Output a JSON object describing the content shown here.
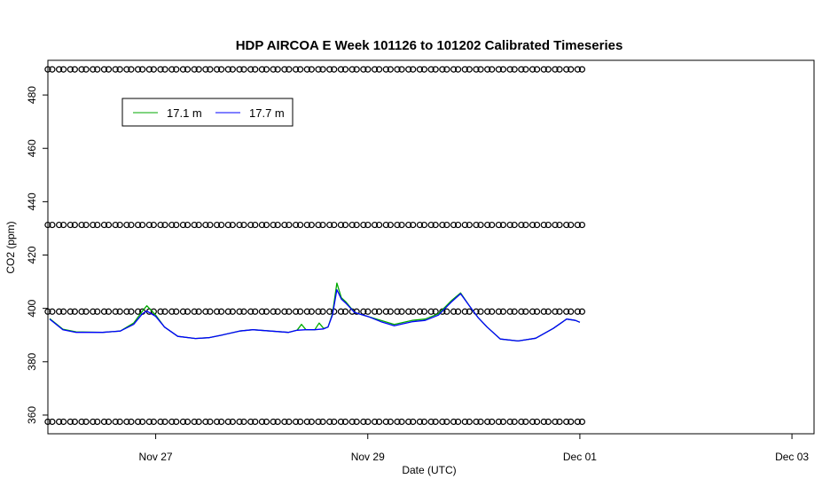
{
  "chart_data": {
    "type": "line",
    "title": "HDP AIRCOA E  Week 101126 to 101202  Calibrated Timeseries",
    "xlabel": "Date (UTC)",
    "ylabel": "CO2 (ppm)",
    "xlim": [
      "2010-11-25T23:36",
      "2010-12-03T05:00"
    ],
    "ylim": [
      353,
      493
    ],
    "x_ticks": [
      {
        "t": "2010-11-27T00:00",
        "label": "Nov 27"
      },
      {
        "t": "2010-11-29T00:00",
        "label": "Nov 29"
      },
      {
        "t": "2010-12-01T00:00",
        "label": "Dec 01"
      },
      {
        "t": "2010-12-03T00:00",
        "label": "Dec 03"
      }
    ],
    "y_ticks": [
      360,
      380,
      400,
      420,
      440,
      460,
      480
    ],
    "legend": {
      "position": "top-left",
      "entries": [
        {
          "label": "17.1 m",
          "color": "#00aa00"
        },
        {
          "label": "17.7 m",
          "color": "#0000ff"
        }
      ]
    },
    "series": [
      {
        "name": "17.1 m",
        "color": "#00aa00",
        "points": [
          [
            "2010-11-26T00:00",
            396.2
          ],
          [
            "2010-11-26T03:00",
            392.2
          ],
          [
            "2010-11-26T06:00",
            391.2
          ],
          [
            "2010-11-26T12:00",
            391.0
          ],
          [
            "2010-11-26T16:00",
            391.5
          ],
          [
            "2010-11-26T19:00",
            394.5
          ],
          [
            "2010-11-26T21:00",
            399.0
          ],
          [
            "2010-11-26T22:00",
            401.0
          ],
          [
            "2010-11-27T00:00",
            397.5
          ],
          [
            "2010-11-27T02:00",
            393.0
          ],
          [
            "2010-11-27T05:00",
            389.5
          ],
          [
            "2010-11-27T09:00",
            388.7
          ],
          [
            "2010-11-27T12:00",
            389.0
          ],
          [
            "2010-11-27T15:00",
            390.0
          ],
          [
            "2010-11-27T19:00",
            391.5
          ],
          [
            "2010-11-27T22:00",
            392.0
          ],
          [
            "2010-11-28T02:00",
            391.5
          ],
          [
            "2010-11-28T06:00",
            391.0
          ],
          [
            "2010-11-28T08:00",
            391.8
          ],
          [
            "2010-11-28T09:00",
            394.0
          ],
          [
            "2010-11-28T10:00",
            392.0
          ],
          [
            "2010-11-28T12:00",
            392.0
          ],
          [
            "2010-11-28T13:00",
            394.5
          ],
          [
            "2010-11-28T14:00",
            392.5
          ],
          [
            "2010-11-28T15:00",
            393.0
          ],
          [
            "2010-11-28T16:00",
            398.0
          ],
          [
            "2010-11-28T17:00",
            409.5
          ],
          [
            "2010-11-28T18:00",
            404.0
          ],
          [
            "2010-11-28T19:00",
            402.5
          ],
          [
            "2010-11-28T21:00",
            398.5
          ],
          [
            "2010-11-29T00:00",
            397.0
          ],
          [
            "2010-11-29T03:00",
            395.5
          ],
          [
            "2010-11-29T06:00",
            394.0
          ],
          [
            "2010-11-29T10:00",
            395.5
          ],
          [
            "2010-11-29T13:00",
            396.0
          ],
          [
            "2010-11-29T16:00",
            398.0
          ],
          [
            "2010-11-29T19:00",
            403.0
          ],
          [
            "2010-11-29T21:00",
            405.8
          ],
          [
            "2010-11-29T23:00",
            401.0
          ],
          [
            "2010-11-30T01:00",
            396.5
          ],
          [
            "2010-11-30T03:00",
            393.0
          ],
          [
            "2010-11-30T06:00",
            388.5
          ],
          [
            "2010-11-30T10:00",
            387.8
          ],
          [
            "2010-11-30T14:00",
            388.8
          ],
          [
            "2010-11-30T18:00",
            392.5
          ],
          [
            "2010-11-30T21:00",
            396.0
          ],
          [
            "2010-11-30T23:00",
            395.5
          ],
          [
            "2010-12-01T00:00",
            394.8
          ]
        ]
      },
      {
        "name": "17.7 m",
        "color": "#0000ff",
        "points": [
          [
            "2010-11-26T00:00",
            396.0
          ],
          [
            "2010-11-26T03:00",
            392.0
          ],
          [
            "2010-11-26T06:00",
            391.0
          ],
          [
            "2010-11-26T12:00",
            391.0
          ],
          [
            "2010-11-26T16:00",
            391.5
          ],
          [
            "2010-11-26T19:00",
            394.0
          ],
          [
            "2010-11-26T21:00",
            398.0
          ],
          [
            "2010-11-26T22:00",
            399.0
          ],
          [
            "2010-11-27T00:00",
            397.0
          ],
          [
            "2010-11-27T02:00",
            393.0
          ],
          [
            "2010-11-27T05:00",
            389.5
          ],
          [
            "2010-11-27T09:00",
            388.7
          ],
          [
            "2010-11-27T12:00",
            389.0
          ],
          [
            "2010-11-27T15:00",
            390.0
          ],
          [
            "2010-11-27T19:00",
            391.5
          ],
          [
            "2010-11-27T22:00",
            392.0
          ],
          [
            "2010-11-28T02:00",
            391.5
          ],
          [
            "2010-11-28T06:00",
            391.0
          ],
          [
            "2010-11-28T08:00",
            391.8
          ],
          [
            "2010-11-28T10:00",
            392.0
          ],
          [
            "2010-11-28T12:00",
            392.0
          ],
          [
            "2010-11-28T14:00",
            392.3
          ],
          [
            "2010-11-28T15:00",
            393.0
          ],
          [
            "2010-11-28T16:00",
            397.5
          ],
          [
            "2010-11-28T17:00",
            407.0
          ],
          [
            "2010-11-28T18:00",
            403.5
          ],
          [
            "2010-11-28T19:00",
            402.0
          ],
          [
            "2010-11-28T21:00",
            398.5
          ],
          [
            "2010-11-29T00:00",
            397.0
          ],
          [
            "2010-11-29T03:00",
            395.0
          ],
          [
            "2010-11-29T06:00",
            393.5
          ],
          [
            "2010-11-29T10:00",
            395.0
          ],
          [
            "2010-11-29T13:00",
            395.5
          ],
          [
            "2010-11-29T16:00",
            397.5
          ],
          [
            "2010-11-29T19:00",
            402.5
          ],
          [
            "2010-11-29T21:00",
            405.5
          ],
          [
            "2010-11-29T23:00",
            401.0
          ],
          [
            "2010-11-30T01:00",
            396.5
          ],
          [
            "2010-11-30T03:00",
            393.0
          ],
          [
            "2010-11-30T06:00",
            388.5
          ],
          [
            "2010-11-30T10:00",
            387.8
          ],
          [
            "2010-11-30T14:00",
            388.8
          ],
          [
            "2010-11-30T18:00",
            392.5
          ],
          [
            "2010-11-30T21:00",
            396.0
          ],
          [
            "2010-11-30T23:00",
            395.5
          ],
          [
            "2010-12-01T00:00",
            394.8
          ]
        ]
      },
      {
        "name": "",
        "type": "scatter",
        "marker": "open-circle",
        "color": "#000000",
        "start": "2010-11-26T00:05",
        "end": "2010-12-01T00:00",
        "levels": [
          489.6,
          431.3,
          398.8,
          357.5
        ],
        "points_per_level": 48
      }
    ]
  }
}
